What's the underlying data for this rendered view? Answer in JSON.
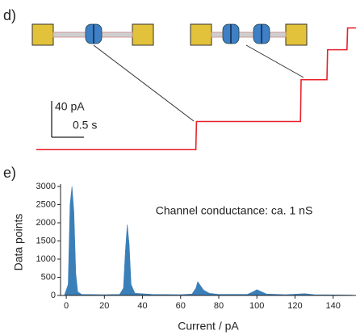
{
  "chart_data": [
    {
      "type": "line",
      "label": "d)",
      "x": [
        0,
        2.47,
        2.48,
        4.09,
        4.1,
        4.5,
        4.51,
        4.81,
        4.82,
        4.95
      ],
      "values": [
        3,
        3,
        34,
        34,
        80,
        80,
        113,
        113,
        137,
        137
      ],
      "color": "#e8202a",
      "xlim": [
        0,
        4.95
      ],
      "ylim": [
        -10,
        150
      ],
      "scale_bar": {
        "y": {
          "value": 40,
          "label": "40 pA"
        },
        "x": {
          "value": 0.5,
          "label": "0.5 s"
        }
      }
    },
    {
      "type": "area",
      "label": "e)",
      "annotation": "Channel conductance: ca. 1 nS",
      "x_label": "Current / pA",
      "y_label": "Data points",
      "x": [
        -1,
        1,
        2,
        3,
        4,
        5,
        6,
        8,
        20,
        28,
        30,
        31,
        32,
        33,
        34,
        36,
        45,
        60,
        66,
        68,
        69,
        70,
        72,
        75,
        80,
        95,
        98,
        100,
        102,
        105,
        115,
        122,
        125,
        130,
        140,
        150
      ],
      "values": [
        0,
        300,
        2500,
        3000,
        2300,
        600,
        100,
        30,
        20,
        30,
        200,
        1200,
        1950,
        1400,
        300,
        60,
        30,
        20,
        40,
        200,
        380,
        300,
        150,
        60,
        30,
        30,
        100,
        160,
        110,
        40,
        20,
        40,
        50,
        20,
        15,
        10
      ],
      "color": "#3b7fb8",
      "xlim": [
        -3,
        152
      ],
      "ylim": [
        0,
        3000
      ],
      "xticks": [
        0,
        20,
        40,
        60,
        80,
        100,
        120,
        140
      ],
      "yticks": [
        0,
        500,
        1000,
        1500,
        2000,
        2500,
        3000
      ]
    }
  ]
}
